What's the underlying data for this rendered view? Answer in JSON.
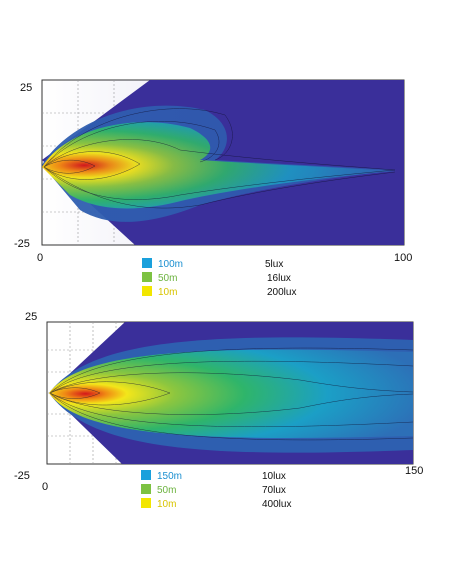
{
  "chart_data": [
    {
      "type": "heatmap",
      "description_kind": "isolux beam pattern",
      "x_ticks": [
        "0",
        "100"
      ],
      "y_ticks": [
        "25",
        "-25"
      ],
      "xlim": [
        0,
        100
      ],
      "ylim": [
        -25,
        25
      ],
      "grid": true,
      "legend": [
        {
          "distance": "100m",
          "lux": "5lux",
          "color": "#1aa0dc"
        },
        {
          "distance": "50m",
          "lux": "16lux",
          "color": "#7dc242"
        },
        {
          "distance": "10m",
          "lux": "200lux",
          "color": "#f2e600"
        }
      ]
    },
    {
      "type": "heatmap",
      "description_kind": "isolux beam pattern",
      "x_ticks": [
        "0",
        "150"
      ],
      "y_ticks": [
        "25",
        "-25"
      ],
      "xlim": [
        0,
        150
      ],
      "ylim": [
        -25,
        25
      ],
      "grid": true,
      "legend": [
        {
          "distance": "150m",
          "lux": "10lux",
          "color": "#1aa0dc"
        },
        {
          "distance": "50m",
          "lux": "70lux",
          "color": "#7dc242"
        },
        {
          "distance": "10m",
          "lux": "400lux",
          "color": "#f2e600"
        }
      ]
    }
  ]
}
